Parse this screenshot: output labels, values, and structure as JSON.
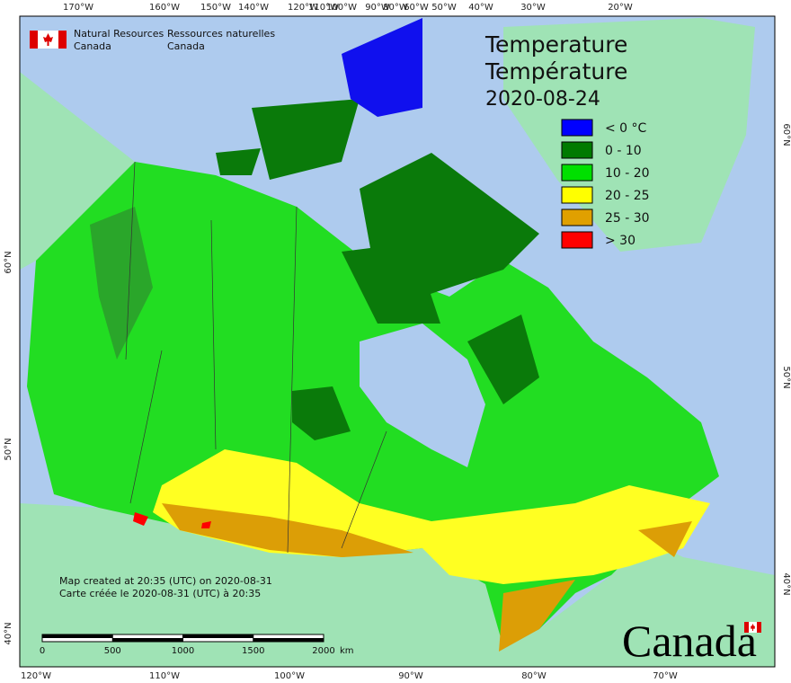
{
  "header": {
    "org_en": [
      "Natural Resources",
      "Canada"
    ],
    "org_fr": [
      "Ressources naturelles",
      "Canada"
    ]
  },
  "title": [
    "Temperature",
    "Température",
    "2020-08-24"
  ],
  "legend": [
    {
      "label": "< 0 °C",
      "color": "#0000ff"
    },
    {
      "label": "0 - 10",
      "color": "#007a00"
    },
    {
      "label": "10 - 20",
      "color": "#00e000"
    },
    {
      "label": "20 - 25",
      "color": "#ffff00"
    },
    {
      "label": "25 - 30",
      "color": "#e0a000"
    },
    {
      "label": "> 30",
      "color": "#ff0000"
    }
  ],
  "graticule": {
    "top": [
      "170°W",
      "160°W",
      "150°W",
      "140°W",
      "120°W",
      "110°W",
      "100°W",
      "90°W",
      "80°W",
      "60°W",
      "50°W",
      "40°W",
      "30°W",
      "20°W"
    ],
    "bottom": [
      "120°W",
      "110°W",
      "100°W",
      "90°W",
      "80°W",
      "70°W"
    ],
    "left": [
      "60°N",
      "50°N",
      "40°N"
    ],
    "right": [
      "60°N",
      "50°N",
      "40°N"
    ]
  },
  "credits": [
    "Map created at 20:35 (UTC) on 2020-08-31",
    "Carte créée le 2020-08-31 (UTC) à 20:35"
  ],
  "scale_bar": {
    "ticks": [
      0,
      500,
      1000,
      1500,
      2000
    ],
    "unit": "km"
  },
  "wordmark": "Canada"
}
